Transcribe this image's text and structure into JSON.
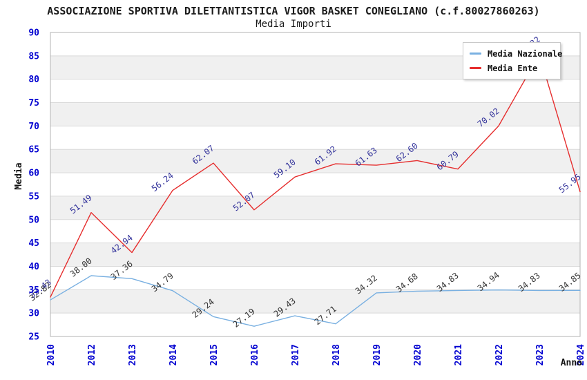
{
  "header": {
    "title": "ASSOCIAZIONE SPORTIVA DILETTANTISTICA VIGOR BASKET CONEGLIANO (c.f.80027860263)",
    "subtitle": "Media Importi"
  },
  "legend": {
    "items": [
      {
        "label": "Media Nazionale",
        "color": "#79b0e1"
      },
      {
        "label": "Media Ente",
        "color": "#e62e2e"
      }
    ]
  },
  "chart_data": {
    "type": "line",
    "title": "ASSOCIAZIONE SPORTIVA DILETTANTISTICA VIGOR BASKET CONEGLIANO (c.f.80027860263)",
    "subtitle": "Media Importi",
    "x": [
      "2010",
      "2012",
      "2013",
      "2014",
      "2015",
      "2016",
      "2017",
      "2018",
      "2019",
      "2020",
      "2021",
      "2022",
      "2023",
      "2024"
    ],
    "series": [
      {
        "name": "Media Nazionale",
        "color": "#79b0e1",
        "label_color": "#333333",
        "values": [
          32.82,
          38.0,
          37.36,
          34.79,
          29.24,
          27.19,
          29.43,
          27.71,
          34.32,
          34.68,
          34.83,
          34.94,
          34.83,
          34.85
        ]
      },
      {
        "name": "Media Ente",
        "color": "#e62e2e",
        "label_color": "#33339b",
        "values": [
          33.43,
          51.49,
          42.94,
          56.24,
          62.07,
          52.07,
          59.1,
          61.92,
          61.63,
          62.6,
          60.79,
          70.02,
          85.32,
          55.95
        ]
      }
    ],
    "xlabel": "Anno",
    "ylabel": "Media",
    "ylim": [
      25,
      90
    ],
    "ytick_step": 5,
    "yticks": [
      25,
      30,
      35,
      40,
      45,
      50,
      55,
      60,
      65,
      70,
      75,
      80,
      85,
      90
    ],
    "grid": true,
    "bands": true,
    "legend_position": "top-right",
    "point_labels": true,
    "label_decimals": 2,
    "tick_color": "#0000d0",
    "grid_color": "#d9d9d9",
    "band_color": "#f0f0f0",
    "border_color": "#b3b3b3",
    "axis_title_color": "#111111"
  }
}
